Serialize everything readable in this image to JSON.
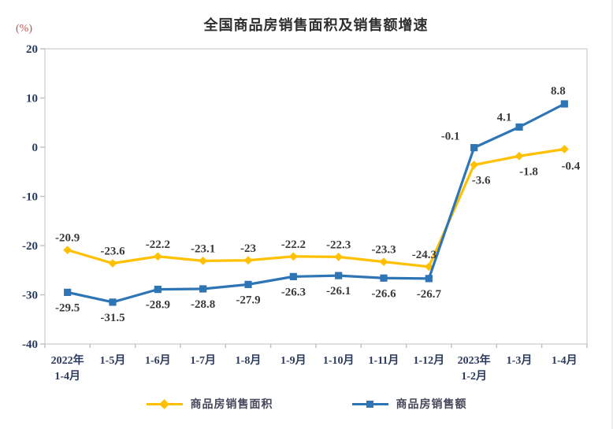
{
  "title": "全国商品房销售面积及销售额增速",
  "chart_data": {
    "type": "line",
    "title": "全国商品房销售面积及销售额增速",
    "unit_label": "(%)",
    "categories": [
      [
        "2022年",
        "1-4月"
      ],
      "1-5月",
      "1-6月",
      "1-7月",
      "1-8月",
      "1-9月",
      "1-10月",
      "1-11月",
      "1-12月",
      [
        "2023年",
        "1-2月"
      ],
      "1-3月",
      "1-4月"
    ],
    "y_axis": {
      "min": -40,
      "max": 20,
      "step": 10,
      "ticks": [
        20,
        10,
        0,
        -10,
        -20,
        -30,
        -40
      ]
    },
    "grid": false,
    "legend_position": "bottom",
    "series": [
      {
        "name": "商品房销售面积",
        "color": "#FFC000",
        "marker": "diamond",
        "values": [
          -20.9,
          -23.6,
          -22.2,
          -23.1,
          -23.0,
          -22.2,
          -22.3,
          -23.3,
          -24.3,
          -3.6,
          -1.8,
          -0.4
        ],
        "label_sides": [
          "above",
          "above",
          "above",
          "above",
          "above",
          "above",
          "above",
          "above",
          "above",
          "below",
          "below",
          "below"
        ],
        "label_offsets": [
          null,
          null,
          null,
          null,
          null,
          null,
          null,
          null,
          [
            -6,
            0
          ],
          [
            9,
            0
          ],
          [
            12,
            0
          ],
          [
            8,
            2
          ]
        ]
      },
      {
        "name": "商品房销售额",
        "color": "#2E75B6",
        "marker": "square",
        "values": [
          -29.5,
          -31.5,
          -28.9,
          -28.8,
          -27.9,
          -26.3,
          -26.1,
          -26.6,
          -26.7,
          -0.1,
          4.1,
          8.8
        ],
        "label_sides": [
          "below",
          "below",
          "below",
          "below",
          "below",
          "below",
          "below",
          "below",
          "below",
          "above",
          "above",
          "above"
        ],
        "label_offsets": [
          null,
          null,
          null,
          null,
          null,
          null,
          null,
          null,
          null,
          [
            -30,
            1
          ],
          [
            -19,
            3
          ],
          [
            -8,
            -1
          ]
        ]
      }
    ]
  },
  "colors": {
    "plot_border": "#d8d8d8",
    "tick_mark": "#bfbfbf",
    "axis_text": "#283a5e",
    "data_label_text": "#3a3a3a",
    "unit_label_text": "#c0504d",
    "title_text": "#2f2f2f",
    "series_area": "#FFC000",
    "series_amount": "#2E75B6"
  }
}
